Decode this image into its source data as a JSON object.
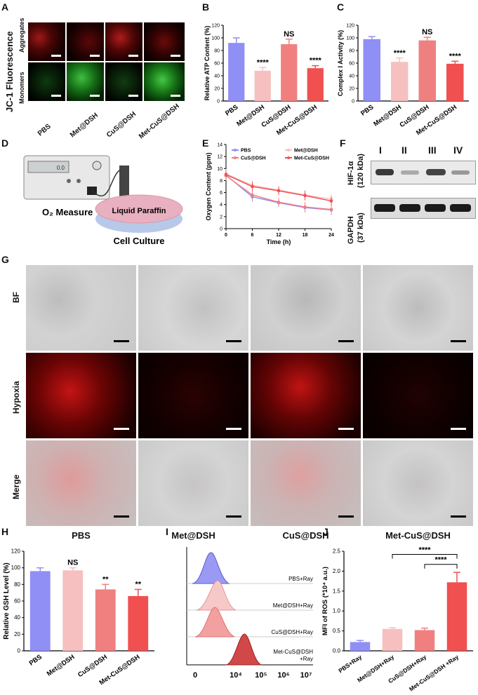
{
  "panel_letters": {
    "A": "A",
    "B": "B",
    "C": "C",
    "D": "D",
    "E": "E",
    "F": "F",
    "G": "G",
    "H": "H",
    "I": "I",
    "J": "J"
  },
  "panelA": {
    "ylabel": "JC-1 Fluorescence",
    "row1": "Aggregates",
    "row2": "Monomers",
    "groups": [
      "PBS",
      "Met@DSH",
      "CuS@DSH",
      "Met-CuS@DSH"
    ]
  },
  "groups": [
    "PBS",
    "Met@DSH",
    "CuS@DSH",
    "Met-CuS@DSH"
  ],
  "colors": {
    "pbs": "#8f8ff5",
    "met": "#f7c0c0",
    "cus": "#f08080",
    "metcus": "#f05050"
  },
  "panelD": {
    "o2": "O₂ Measure",
    "paraffin": "Liquid Paraffin",
    "culture": "Cell Culture",
    "screen": "0.0"
  },
  "panelF": {
    "lanes": [
      "I",
      "II",
      "III",
      "IV"
    ],
    "hif_a": "HIF-1α",
    "hif_b": "(120 kDa)",
    "gapdh_a": "GAPDH",
    "gapdh_b": "(37 kDa)"
  },
  "panelG": {
    "rows": [
      "BF",
      "Hypoxia",
      "Merge"
    ],
    "cols": [
      "PBS",
      "Met@DSH",
      "CuS@DSH",
      "Met-CuS@DSH"
    ]
  },
  "panelI": {
    "xticks": [
      "0",
      "10⁴",
      "10⁵",
      "10⁶",
      "10⁷"
    ],
    "labels": [
      "PBS+Ray",
      "Met@DSH+Ray",
      "CuS@DSH+Ray",
      "Met-CuS@DSH",
      "+Ray"
    ]
  },
  "chart_data": [
    {
      "id": "B",
      "type": "bar",
      "categories": [
        "PBS",
        "Met@DSH",
        "CuS@DSH",
        "Met-CuS@DSH"
      ],
      "values": [
        92,
        48,
        90,
        52
      ],
      "errors": [
        8,
        5,
        8,
        4
      ],
      "ylabel": "Relative ATP Content (%)",
      "ylim": [
        0,
        120
      ],
      "yticks": [
        "0",
        "20",
        "40",
        "60",
        "80",
        "100",
        "120"
      ],
      "annotations": [
        "",
        "****",
        "NS",
        "****"
      ]
    },
    {
      "id": "C",
      "type": "bar",
      "categories": [
        "PBS",
        "Met@DSH",
        "CuS@DSH",
        "Met-CuS@DSH"
      ],
      "values": [
        98,
        62,
        96,
        59
      ],
      "errors": [
        4,
        6,
        5,
        4
      ],
      "ylabel": "Complex I Activity (%)",
      "ylim": [
        0,
        120
      ],
      "yticks": [
        "0",
        "20",
        "40",
        "60",
        "80",
        "100",
        "120"
      ],
      "annotations": [
        "",
        "****",
        "NS",
        "****"
      ]
    },
    {
      "id": "E",
      "type": "line",
      "x": [
        0,
        6,
        12,
        18,
        24
      ],
      "series": [
        {
          "name": "PBS",
          "values": [
            8.9,
            5.3,
            4.3,
            3.5,
            3.1
          ],
          "color": "#8f8ff5"
        },
        {
          "name": "Met@DSH",
          "values": [
            9.1,
            7.2,
            6.4,
            5.6,
            4.9
          ],
          "color": "#f7c0c0"
        },
        {
          "name": "CuS@DSH",
          "values": [
            8.8,
            5.6,
            4.4,
            3.6,
            3.2
          ],
          "color": "#f08080"
        },
        {
          "name": "Met-CuS@DSH",
          "values": [
            9.0,
            7.0,
            6.3,
            5.5,
            4.6
          ],
          "color": "#f05050"
        }
      ],
      "errors": [
        0.8,
        0.8,
        0.7,
        0.8,
        0.8
      ],
      "xlabel": "Time (h)",
      "ylabel": "Oxygen Content (ppm)",
      "xticks": [
        "0",
        "6",
        "12",
        "18",
        "24"
      ],
      "yticks": [
        "0",
        "2",
        "4",
        "6",
        "8",
        "10",
        "12",
        "14"
      ],
      "ylim": [
        0,
        14
      ]
    },
    {
      "id": "H",
      "type": "bar",
      "categories": [
        "PBS",
        "Met@DSH",
        "CuS@DSH",
        "Met-CuS@DSH"
      ],
      "values": [
        96,
        97,
        74,
        66
      ],
      "errors": [
        4,
        3,
        6,
        8
      ],
      "ylabel": "Relative GSH Level (%)",
      "ylim": [
        0,
        120
      ],
      "yticks": [
        "0",
        "20",
        "40",
        "60",
        "80",
        "100",
        "120"
      ],
      "annotations": [
        "",
        "NS",
        "**",
        "**"
      ]
    },
    {
      "id": "J",
      "type": "bar",
      "categories": [
        "PBS+Ray",
        "Met@DSH+Ray",
        "CuS@DSH+Ray",
        "Met-CuS@DSH +Ray"
      ],
      "values": [
        0.22,
        0.55,
        0.52,
        1.72
      ],
      "errors": [
        0.04,
        0.03,
        0.05,
        0.25
      ],
      "ylabel": "MFI of ROS (*10⁴ a.u.)",
      "ylim": [
        0,
        2.5
      ],
      "yticks": [
        "0.0",
        "0.5",
        "1.0",
        "1.5",
        "2.0",
        "2.5"
      ],
      "annotations": [
        "****",
        "****"
      ]
    }
  ]
}
